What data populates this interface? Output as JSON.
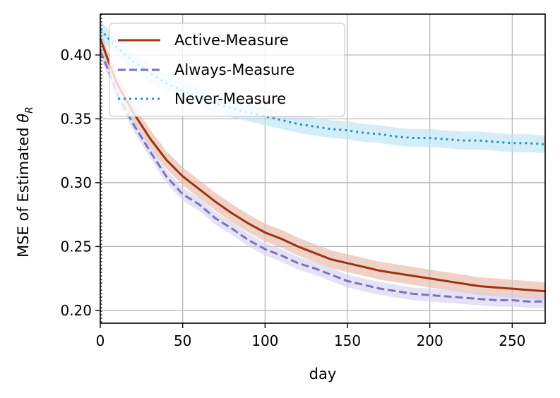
{
  "chart_data": {
    "type": "line",
    "xlabel": "day",
    "ylabel_prefix": "MSE of Estimated ",
    "ylabel_symbol": "θ",
    "ylabel_subscript": "R",
    "xlim": [
      0,
      270
    ],
    "ylim": [
      0.19,
      0.432
    ],
    "xticks": [
      0,
      50,
      100,
      150,
      200,
      250
    ],
    "xtick_labels": [
      "0",
      "50",
      "100",
      "150",
      "200",
      "250"
    ],
    "yticks": [
      0.2,
      0.25,
      0.3,
      0.35,
      0.4
    ],
    "ytick_labels": [
      "0.20",
      "0.25",
      "0.30",
      "0.35",
      "0.40"
    ],
    "grid": true,
    "legend_position": "top-left",
    "vertical_marker_x": 0,
    "series": [
      {
        "name": "Active-Measure",
        "style": "solid",
        "color": "#9a3412",
        "band_color": "#e8b9a6",
        "x": [
          0,
          5,
          10,
          20,
          30,
          40,
          50,
          60,
          70,
          80,
          90,
          100,
          110,
          120,
          130,
          140,
          150,
          160,
          170,
          180,
          190,
          200,
          210,
          220,
          230,
          240,
          250,
          260,
          270
        ],
        "y": [
          0.413,
          0.395,
          0.378,
          0.355,
          0.335,
          0.318,
          0.305,
          0.295,
          0.285,
          0.276,
          0.268,
          0.261,
          0.256,
          0.25,
          0.245,
          0.24,
          0.237,
          0.234,
          0.231,
          0.229,
          0.227,
          0.225,
          0.223,
          0.221,
          0.219,
          0.218,
          0.217,
          0.216,
          0.215
        ],
        "band": 0.007
      },
      {
        "name": "Always-Measure",
        "style": "dashed",
        "color": "#7b73bf",
        "band_color": "#d6d2ee",
        "x": [
          0,
          5,
          10,
          20,
          30,
          40,
          50,
          60,
          70,
          80,
          90,
          100,
          110,
          120,
          130,
          140,
          150,
          160,
          170,
          180,
          190,
          200,
          210,
          220,
          230,
          240,
          250,
          260,
          270
        ],
        "y": [
          0.403,
          0.388,
          0.37,
          0.346,
          0.325,
          0.305,
          0.291,
          0.283,
          0.272,
          0.264,
          0.255,
          0.248,
          0.243,
          0.237,
          0.233,
          0.228,
          0.223,
          0.22,
          0.217,
          0.215,
          0.213,
          0.212,
          0.211,
          0.21,
          0.209,
          0.208,
          0.208,
          0.207,
          0.207
        ],
        "band": 0.005
      },
      {
        "name": "Never-Measure",
        "style": "dotted",
        "color": "#1a98c8",
        "band_color": "#bfe3f3",
        "x": [
          0,
          5,
          10,
          20,
          30,
          40,
          50,
          60,
          70,
          80,
          90,
          100,
          110,
          120,
          130,
          140,
          150,
          160,
          170,
          180,
          190,
          200,
          210,
          220,
          230,
          240,
          250,
          260,
          270
        ],
        "y": [
          0.42,
          0.413,
          0.406,
          0.395,
          0.386,
          0.378,
          0.372,
          0.367,
          0.362,
          0.358,
          0.355,
          0.352,
          0.349,
          0.346,
          0.344,
          0.342,
          0.341,
          0.339,
          0.338,
          0.336,
          0.335,
          0.335,
          0.334,
          0.333,
          0.333,
          0.332,
          0.331,
          0.331,
          0.33
        ],
        "band": 0.007
      }
    ]
  }
}
